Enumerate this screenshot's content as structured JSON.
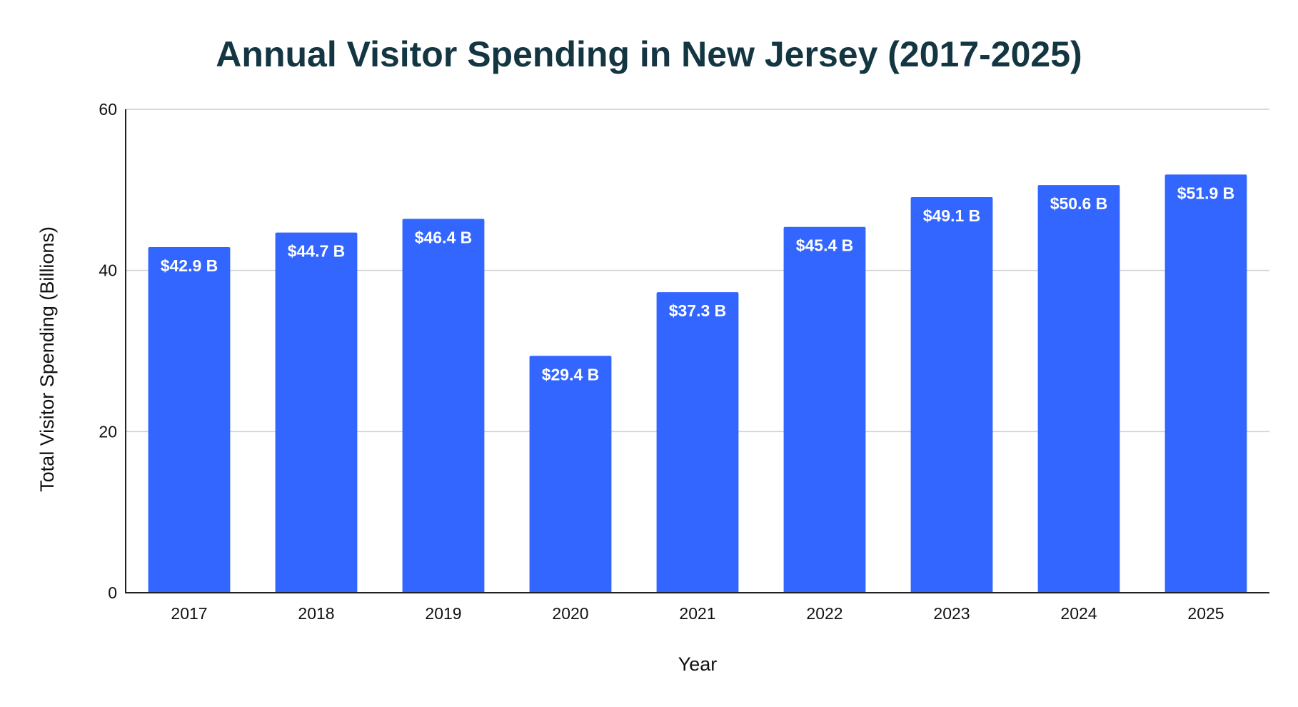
{
  "chart_data": {
    "type": "bar",
    "title": "Annual Visitor Spending in New Jersey (2017-2025)",
    "xlabel": "Year",
    "ylabel": "Total Visitor Spending (Billions)",
    "categories": [
      "2017",
      "2018",
      "2019",
      "2020",
      "2021",
      "2022",
      "2023",
      "2024",
      "2025"
    ],
    "values": [
      42.9,
      44.7,
      46.4,
      29.4,
      37.3,
      45.4,
      49.1,
      50.6,
      51.9
    ],
    "data_labels": [
      "$42.9 B",
      "$44.7 B",
      "$46.4 B",
      "$29.4 B",
      "$37.3 B",
      "$45.4 B",
      "$49.1 B",
      "$50.6 B",
      "$51.9 B"
    ],
    "ylim": [
      0,
      60
    ],
    "yticks": [
      "0",
      "20",
      "40",
      "60"
    ],
    "grid": true,
    "legend": "none",
    "colors": {
      "bar": "#3366ff",
      "title": "#143642"
    }
  }
}
